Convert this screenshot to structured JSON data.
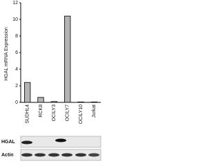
{
  "chart_data": {
    "type": "bar",
    "y_label": "HGAL mRNA Expression",
    "categories": [
      "SUDHL4",
      "RCK8",
      "OCILY3",
      "OCILY7",
      "OCILY10",
      "Jurkat"
    ],
    "values": [
      2.4,
      0.6,
      0.1,
      10.4,
      0.05,
      0.05
    ],
    "color": "#b4b4b4",
    "ylim": [
      0,
      12
    ],
    "yticks": [
      0,
      2,
      4,
      6,
      8,
      10,
      12
    ],
    "grid": false,
    "annotations": [
      "HGAL",
      "Actin"
    ]
  }
}
